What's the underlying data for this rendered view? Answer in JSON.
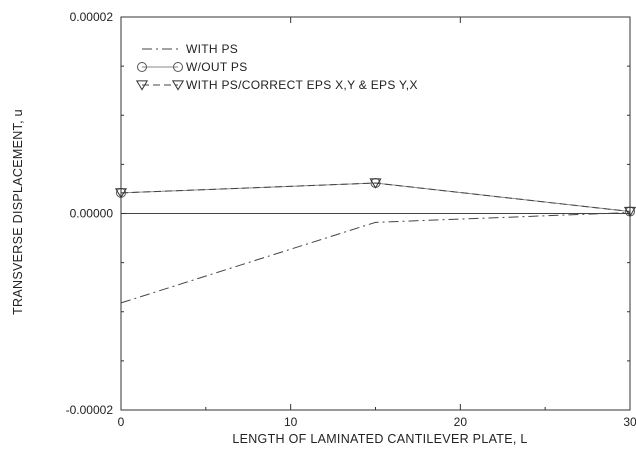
{
  "chart_data": {
    "type": "line",
    "xlabel": "LENGTH OF LAMINATED CANTILEVER PLATE, L",
    "ylabel": "TRANSVERSE DISPLACEMENT, u",
    "xlim": [
      0,
      30
    ],
    "ylim": [
      -2e-05,
      2e-05
    ],
    "xticks": [
      0,
      10,
      20,
      30
    ],
    "xtick_labels": [
      "0",
      "10",
      "20",
      "30"
    ],
    "yticks": [
      -2e-05,
      0,
      2e-05
    ],
    "ytick_labels": [
      "-0.00002",
      "0.00000",
      "0.00002"
    ],
    "grid": false,
    "zero_line": true,
    "legend_position": "top-left",
    "series": [
      {
        "name": "WITH PS",
        "style": "dash-dot",
        "marker": "none",
        "x": [
          0,
          15,
          30
        ],
        "y": [
          -9.1e-06,
          -9e-07,
          1e-07
        ]
      },
      {
        "name": "W/OUT PS",
        "style": "solid",
        "marker": "circle",
        "x": [
          0,
          15,
          30
        ],
        "y": [
          2.1e-06,
          3.1e-06,
          2e-07
        ]
      },
      {
        "name": "WITH PS/CORRECT EPS X,Y & EPS Y,X",
        "style": "dashed",
        "marker": "triangle-down",
        "x": [
          0,
          15,
          30
        ],
        "y": [
          2.1e-06,
          3.1e-06,
          2e-07
        ]
      }
    ]
  }
}
